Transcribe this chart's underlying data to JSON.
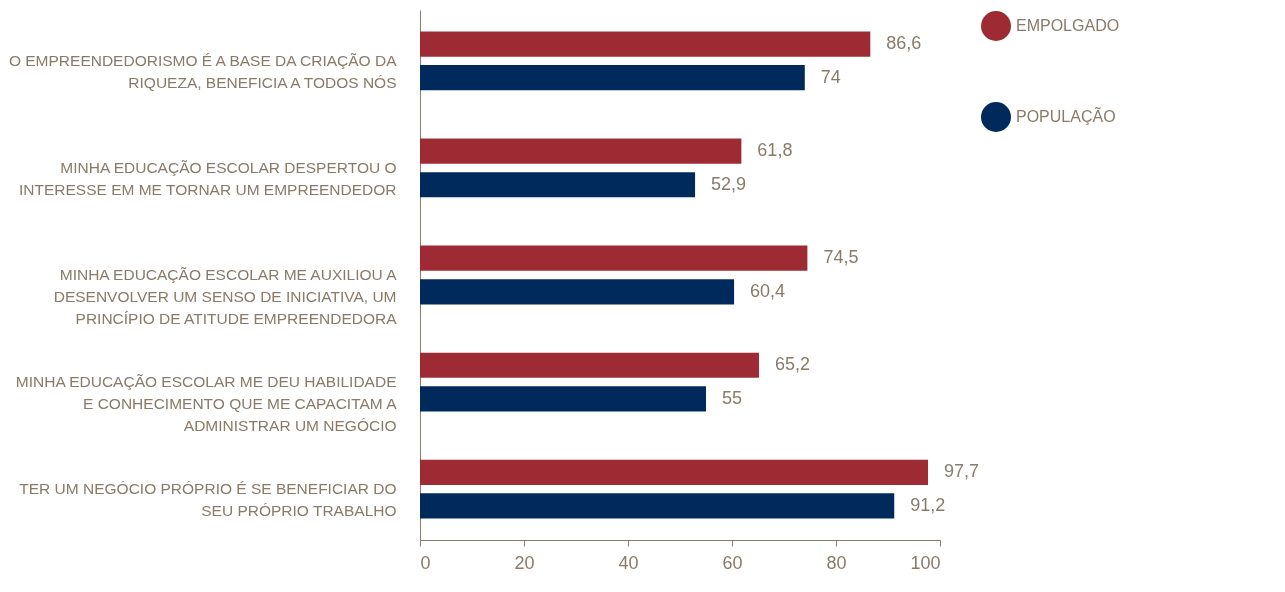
{
  "chart_data": {
    "type": "bar",
    "orientation": "horizontal",
    "categories": [
      "O EMPREENDEDORISMO É A BASE DA CRIAÇÃO DA RIQUEZA, BENEFICIA A TODOS NÓS",
      "MINHA EDUCAÇÃO ESCOLAR DESPERTOU O INTERESSE EM ME TORNAR UM EMPREENDEDOR",
      "MINHA EDUCAÇÃO ESCOLAR ME AUXILIOU A DESENVOLVER UM SENSO DE INICIATIVA, UM PRINCÍPIO DE ATITUDE EMPREENDEDORA",
      "MINHA EDUCAÇÃO ESCOLAR ME DEU HABILIDADE E CONHECIMENTO QUE ME CAPACITAM A ADMINISTRAR UM NEGÓCIO",
      "TER UM NEGÓCIO PRÓPRIO É SE BENEFICIAR DO SEU PRÓPRIO TRABALHO"
    ],
    "series": [
      {
        "name": "EMPOLGADO",
        "color": "#9e2b33",
        "values": [
          86.6,
          61.8,
          74.5,
          65.2,
          97.7
        ],
        "value_labels": [
          "86,6",
          "61,8",
          "74,5",
          "65,2",
          "97,7"
        ]
      },
      {
        "name": "POPULAÇÃO",
        "color": "#002a5c",
        "values": [
          74,
          52.9,
          60.4,
          55,
          91.2
        ],
        "value_labels": [
          "74",
          "52,9",
          "60,4",
          "55",
          "91,2"
        ]
      }
    ],
    "xlim": [
      0,
      100
    ],
    "xticks": [
      0,
      20,
      40,
      60,
      80,
      100
    ],
    "grid": false,
    "legend": "top right"
  }
}
